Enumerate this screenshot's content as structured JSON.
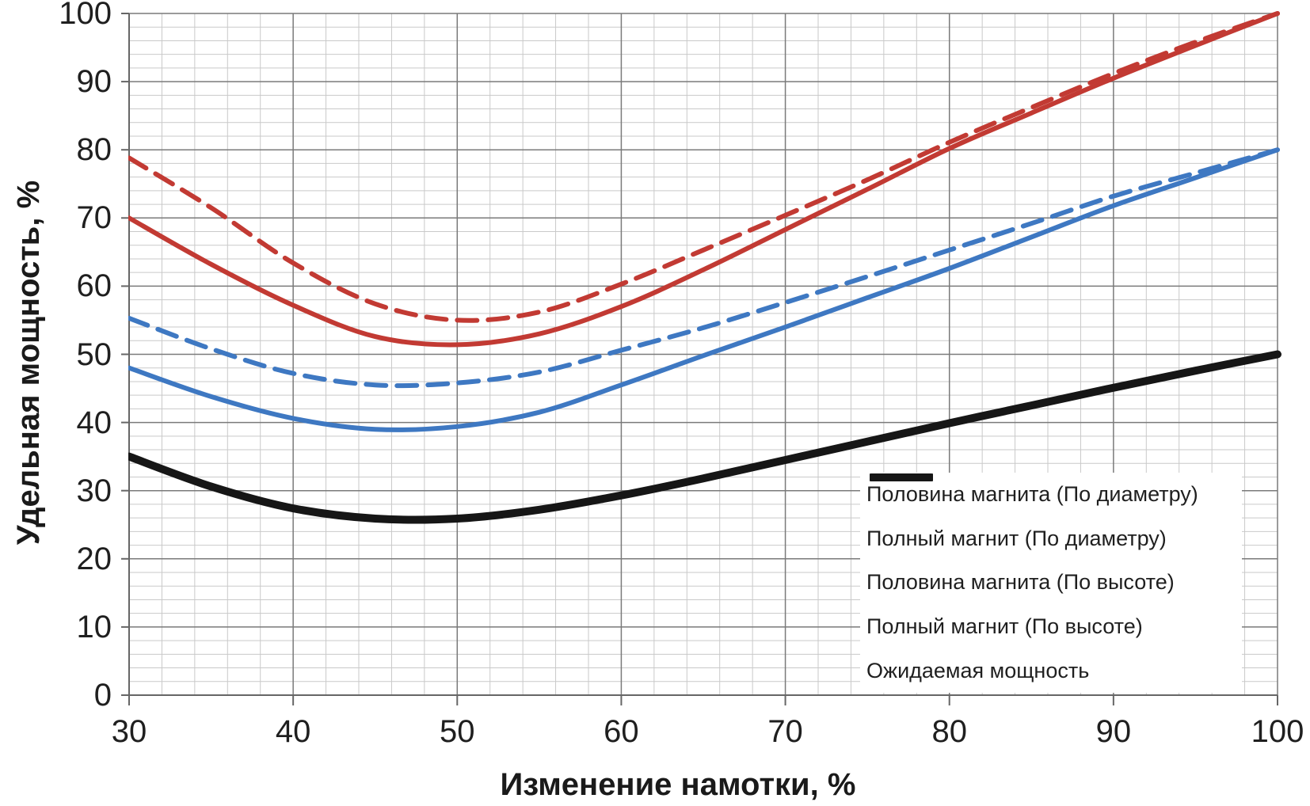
{
  "chart_data": {
    "type": "line",
    "title": "",
    "xlabel": "Изменение намотки, %",
    "ylabel": "Удельная мощность, %",
    "xlim": [
      30,
      100
    ],
    "ylim": [
      0,
      100
    ],
    "x_major_ticks": [
      30,
      40,
      50,
      60,
      70,
      80,
      90,
      100
    ],
    "y_major_ticks": [
      0,
      10,
      20,
      30,
      40,
      50,
      60,
      70,
      80,
      90,
      100
    ],
    "x_minor_step": 2,
    "y_minor_step": 2,
    "grid": "major and minor gridlines on",
    "legend_position": "inside bottom-right, white background, no border",
    "x": [
      30,
      35,
      40,
      45,
      50,
      55,
      60,
      65,
      70,
      75,
      80,
      85,
      90,
      95,
      100
    ],
    "series": [
      {
        "name": "Половина магнита (По диаметру)",
        "color": "#3E78C2",
        "dash": "solid",
        "width": 6,
        "values": [
          48.0,
          43.8,
          40.6,
          39.0,
          39.4,
          41.5,
          45.5,
          49.8,
          54.0,
          58.3,
          62.6,
          67.2,
          71.8,
          75.9,
          80.0
        ]
      },
      {
        "name": "Полный магнит (По диаметру)",
        "color": "#C23A33",
        "dash": "solid",
        "width": 6,
        "values": [
          70.0,
          63.2,
          57.2,
          52.6,
          51.4,
          53.0,
          57.0,
          62.4,
          68.3,
          74.2,
          80.2,
          85.4,
          90.5,
          95.3,
          100.0
        ]
      },
      {
        "name": "Половина магнита (По высоте)",
        "color": "#3E78C2",
        "dash": "dashed",
        "width": 6,
        "values": [
          55.3,
          50.8,
          47.2,
          45.5,
          45.8,
          47.4,
          50.6,
          53.9,
          57.6,
          61.4,
          65.3,
          69.2,
          73.2,
          76.6,
          80.0
        ]
      },
      {
        "name": "Полный магнит (По высоте)",
        "color": "#C23A33",
        "dash": "dashed",
        "width": 6,
        "values": [
          78.8,
          71.5,
          63.4,
          57.4,
          55.0,
          56.2,
          60.3,
          65.3,
          70.4,
          75.6,
          81.1,
          86.2,
          91.2,
          95.8,
          100.0
        ]
      },
      {
        "name": "Ожидаемая мощность",
        "color": "#161616",
        "dash": "solid",
        "width": 10,
        "values": [
          35.0,
          30.6,
          27.4,
          25.9,
          25.9,
          27.2,
          29.3,
          31.8,
          34.5,
          37.2,
          39.9,
          42.5,
          45.1,
          47.6,
          50.0
        ]
      }
    ],
    "style": {
      "grid_minor_color": "#C9C9C9",
      "grid_major_color": "#7A7A7A",
      "axis_color": "#666666",
      "text_color": "#1F1F1F",
      "background": "#FFFFFF",
      "curve_dasharray": "25 14",
      "legend_dasharray": "21 17"
    }
  }
}
